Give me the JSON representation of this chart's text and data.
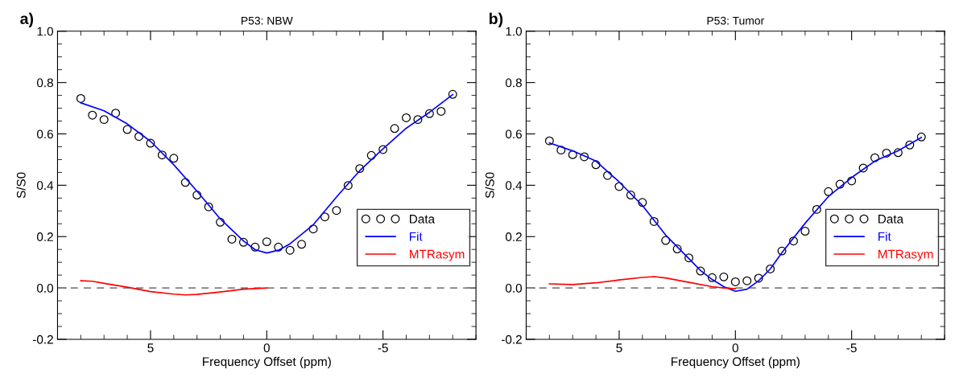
{
  "chart_data": [
    {
      "type": "scatter",
      "title": "P53: NBW",
      "xlabel": "Frequency Offset (ppm)",
      "ylabel": "S/S0",
      "annotations": [
        "a)"
      ],
      "xlim": [
        9,
        -9
      ],
      "ylim": [
        -0.2,
        1.0
      ],
      "xticks": [
        5,
        0,
        -5
      ],
      "yticks": [
        {
          "value": -0.2,
          "label": "-0.2"
        },
        {
          "value": 0,
          "label": "0.0"
        },
        {
          "value": 0.2,
          "label": "0.2"
        },
        {
          "value": 0.4,
          "label": "0.4"
        },
        {
          "value": 0.6,
          "label": "0.6"
        },
        {
          "value": 0.8,
          "label": "0.8"
        },
        {
          "value": 1.0,
          "label": "1.0"
        }
      ],
      "grid": false,
      "legend": "right",
      "ref_lines": [
        {
          "axis": "y",
          "value": 0,
          "color": "#808080",
          "line_style": "dashed"
        }
      ],
      "series": [
        {
          "name": "Data",
          "marker": "circle",
          "color": "#000000",
          "x": [
            8,
            7.5,
            7,
            6.5,
            6,
            5.5,
            5,
            4.5,
            4,
            3.5,
            3,
            2.5,
            2,
            1.5,
            1,
            0.5,
            0,
            -0.5,
            -1,
            -1.5,
            -2,
            -2.5,
            -3,
            -3.5,
            -4,
            -4.5,
            -5,
            -5.5,
            -6,
            -6.5,
            -7,
            -7.5,
            -8
          ],
          "values": [
            0.738,
            0.673,
            0.656,
            0.681,
            0.617,
            0.59,
            0.564,
            0.518,
            0.505,
            0.411,
            0.362,
            0.316,
            0.256,
            0.19,
            0.178,
            0.159,
            0.18,
            0.159,
            0.147,
            0.17,
            0.23,
            0.277,
            0.302,
            0.399,
            0.465,
            0.516,
            0.539,
            0.621,
            0.663,
            0.656,
            0.679,
            0.688,
            0.754
          ]
        },
        {
          "name": "Fit",
          "type": "line",
          "color": "#0000ff",
          "x": [
            8,
            7,
            6,
            5,
            4,
            3,
            2,
            1,
            0.5,
            0,
            -0.5,
            -1,
            -2,
            -3,
            -4,
            -5,
            -6,
            -7,
            -8
          ],
          "values": [
            0.721,
            0.69,
            0.639,
            0.571,
            0.48,
            0.377,
            0.269,
            0.183,
            0.149,
            0.136,
            0.147,
            0.172,
            0.246,
            0.354,
            0.457,
            0.542,
            0.622,
            0.684,
            0.753
          ]
        },
        {
          "name": "MTRasym",
          "type": "line",
          "color": "#ff0000",
          "x": [
            8,
            7.5,
            7,
            6,
            5,
            4,
            3.5,
            3,
            2,
            1,
            0
          ],
          "values": [
            0.028,
            0.026,
            0.018,
            0.003,
            -0.014,
            -0.024,
            -0.027,
            -0.025,
            -0.016,
            -0.005,
            0
          ]
        }
      ]
    },
    {
      "type": "scatter",
      "title": "P53: Tumor",
      "xlabel": "Frequency Offset (ppm)",
      "ylabel": "S/S0",
      "annotations": [
        "b)"
      ],
      "xlim": [
        9,
        -9
      ],
      "ylim": [
        -0.2,
        1.0
      ],
      "xticks": [
        5,
        0,
        -5
      ],
      "yticks": [
        {
          "value": -0.2,
          "label": "-0.2"
        },
        {
          "value": 0,
          "label": "0.0"
        },
        {
          "value": 0.2,
          "label": "0.2"
        },
        {
          "value": 0.4,
          "label": "0.4"
        },
        {
          "value": 0.6,
          "label": "0.6"
        },
        {
          "value": 0.8,
          "label": "0.8"
        },
        {
          "value": 1.0,
          "label": "1.0"
        }
      ],
      "grid": false,
      "legend": "right",
      "ref_lines": [
        {
          "axis": "y",
          "value": 0,
          "color": "#808080",
          "line_style": "dashed"
        }
      ],
      "series": [
        {
          "name": "Data",
          "marker": "circle",
          "color": "#000000",
          "x": [
            8,
            7.5,
            7,
            6.5,
            6,
            5.5,
            5,
            4.5,
            4,
            3.5,
            3,
            2.5,
            2,
            1.5,
            1,
            0.5,
            0,
            -0.5,
            -1,
            -1.5,
            -2,
            -2.5,
            -3,
            -3.5,
            -4,
            -4.5,
            -5,
            -5.5,
            -6,
            -6.5,
            -7,
            -7.5,
            -8
          ],
          "values": [
            0.573,
            0.537,
            0.519,
            0.511,
            0.48,
            0.438,
            0.395,
            0.362,
            0.333,
            0.259,
            0.185,
            0.152,
            0.117,
            0.066,
            0.04,
            0.043,
            0.024,
            0.028,
            0.038,
            0.074,
            0.144,
            0.183,
            0.221,
            0.306,
            0.375,
            0.404,
            0.417,
            0.467,
            0.507,
            0.525,
            0.527,
            0.557,
            0.588
          ]
        },
        {
          "name": "Fit",
          "type": "line",
          "color": "#0000ff",
          "x": [
            8,
            7,
            6,
            5,
            4,
            3,
            2,
            1.5,
            1,
            0.5,
            0,
            -0.5,
            -1,
            -1.5,
            -2,
            -3,
            -4,
            -5,
            -6,
            -7,
            -8
          ],
          "values": [
            0.565,
            0.534,
            0.494,
            0.413,
            0.321,
            0.206,
            0.114,
            0.068,
            0.033,
            0.005,
            -0.013,
            -0.005,
            0.028,
            0.074,
            0.137,
            0.252,
            0.356,
            0.43,
            0.494,
            0.534,
            0.586
          ]
        },
        {
          "name": "MTRasym",
          "type": "line",
          "color": "#ff0000",
          "x": [
            8,
            7,
            6,
            5,
            4,
            3.5,
            3,
            2,
            1,
            0.5,
            0
          ],
          "values": [
            0.016,
            0.013,
            0.02,
            0.031,
            0.041,
            0.044,
            0.039,
            0.022,
            0.005,
            0,
            -0.003
          ]
        }
      ]
    }
  ]
}
